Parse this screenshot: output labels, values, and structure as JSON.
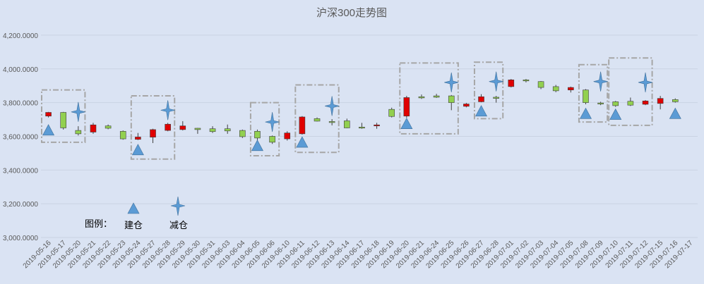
{
  "chart_data": {
    "type": "candlestick",
    "title": "沪深300走势图",
    "ylim": [
      3000,
      4300
    ],
    "yticks": [
      3000,
      3200,
      3400,
      3600,
      3800,
      4000,
      4200
    ],
    "ytick_labels": [
      "3,000.0000",
      "3,200.0000",
      "3,400.0000",
      "3,600.0000",
      "3,800.0000",
      "4,000.0000",
      "4,200.0000"
    ],
    "grid": true,
    "legend": {
      "label": "图例：",
      "buy": "建仓",
      "sell": "减仓",
      "position": "bottom-left"
    },
    "colors": {
      "up": "#e00000",
      "down": "#92d050",
      "marker": "#5b9bd5",
      "box": "#a6a6a6",
      "grid": "#c9d3e3"
    },
    "dates": [
      "2019-05-16",
      "2019-05-17",
      "2019-05-20",
      "2019-05-21",
      "2019-05-22",
      "2019-05-23",
      "2019-05-24",
      "2019-05-27",
      "2019-05-28",
      "2019-05-29",
      "2019-05-30",
      "2019-05-31",
      "2019-06-03",
      "2019-06-04",
      "2019-06-05",
      "2019-06-06",
      "2019-06-10",
      "2019-06-11",
      "2019-06-12",
      "2019-06-13",
      "2019-06-14",
      "2019-06-17",
      "2019-06-18",
      "2019-06-19",
      "2019-06-20",
      "2019-06-21",
      "2019-06-24",
      "2019-06-25",
      "2019-06-26",
      "2019-06-27",
      "2019-06-28",
      "2019-07-01",
      "2019-07-02",
      "2019-07-03",
      "2019-07-04",
      "2019-07-05",
      "2019-07-08",
      "2019-07-09",
      "2019-07-10",
      "2019-07-11",
      "2019-07-12",
      "2019-07-15",
      "2019-07-16",
      "2019-07-17"
    ],
    "candles": [
      {
        "date": "2019-05-16",
        "open": 3720,
        "close": 3742,
        "high": 3745,
        "low": 3712
      },
      {
        "date": "2019-05-17",
        "open": 3742,
        "close": 3650,
        "high": 3745,
        "low": 3640
      },
      {
        "date": "2019-05-20",
        "open": 3635,
        "close": 3615,
        "high": 3660,
        "low": 3605
      },
      {
        "date": "2019-05-21",
        "open": 3625,
        "close": 3668,
        "high": 3680,
        "low": 3615
      },
      {
        "date": "2019-05-22",
        "open": 3662,
        "close": 3648,
        "high": 3670,
        "low": 3642
      },
      {
        "date": "2019-05-23",
        "open": 3630,
        "close": 3585,
        "high": 3635,
        "low": 3580
      },
      {
        "date": "2019-05-24",
        "open": 3582,
        "close": 3596,
        "high": 3620,
        "low": 3578
      },
      {
        "date": "2019-05-27",
        "open": 3595,
        "close": 3640,
        "high": 3645,
        "low": 3560
      },
      {
        "date": "2019-05-28",
        "open": 3635,
        "close": 3672,
        "high": 3680,
        "low": 3630
      },
      {
        "date": "2019-05-29",
        "open": 3640,
        "close": 3662,
        "high": 3690,
        "low": 3635
      },
      {
        "date": "2019-05-30",
        "open": 3648,
        "close": 3640,
        "high": 3650,
        "low": 3615
      },
      {
        "date": "2019-05-31",
        "open": 3645,
        "close": 3628,
        "high": 3660,
        "low": 3620
      },
      {
        "date": "2019-06-03",
        "open": 3645,
        "close": 3632,
        "high": 3670,
        "low": 3615
      },
      {
        "date": "2019-06-04",
        "open": 3635,
        "close": 3598,
        "high": 3640,
        "low": 3590
      },
      {
        "date": "2019-06-05",
        "open": 3630,
        "close": 3590,
        "high": 3640,
        "low": 3575
      },
      {
        "date": "2019-06-06",
        "open": 3600,
        "close": 3565,
        "high": 3605,
        "low": 3555
      },
      {
        "date": "2019-06-10",
        "open": 3585,
        "close": 3620,
        "high": 3630,
        "low": 3575
      },
      {
        "date": "2019-06-11",
        "open": 3615,
        "close": 3715,
        "high": 3720,
        "low": 3610
      },
      {
        "date": "2019-06-12",
        "open": 3705,
        "close": 3690,
        "high": 3712,
        "low": 3688
      },
      {
        "date": "2019-06-13",
        "open": 3688,
        "close": 3682,
        "high": 3702,
        "low": 3665
      },
      {
        "date": "2019-06-14",
        "open": 3692,
        "close": 3650,
        "high": 3705,
        "low": 3648
      },
      {
        "date": "2019-06-17",
        "open": 3655,
        "close": 3650,
        "high": 3680,
        "low": 3645
      },
      {
        "date": "2019-06-18",
        "open": 3662,
        "close": 3668,
        "high": 3680,
        "low": 3645
      },
      {
        "date": "2019-06-19",
        "open": 3760,
        "close": 3718,
        "high": 3770,
        "low": 3712
      },
      {
        "date": "2019-06-20",
        "open": 3720,
        "close": 3830,
        "high": 3840,
        "low": 3710
      },
      {
        "date": "2019-06-21",
        "open": 3835,
        "close": 3828,
        "high": 3848,
        "low": 3822
      },
      {
        "date": "2019-06-24",
        "open": 3840,
        "close": 3832,
        "high": 3852,
        "low": 3828
      },
      {
        "date": "2019-06-25",
        "open": 3840,
        "close": 3800,
        "high": 3845,
        "low": 3755
      },
      {
        "date": "2019-06-26",
        "open": 3778,
        "close": 3792,
        "high": 3798,
        "low": 3772
      },
      {
        "date": "2019-06-27",
        "open": 3805,
        "close": 3835,
        "high": 3850,
        "low": 3802
      },
      {
        "date": "2019-06-28",
        "open": 3832,
        "close": 3825,
        "high": 3840,
        "low": 3800
      },
      {
        "date": "2019-07-01",
        "open": 3895,
        "close": 3935,
        "high": 3940,
        "low": 3890
      },
      {
        "date": "2019-07-02",
        "open": 3935,
        "close": 3930,
        "high": 3940,
        "low": 3920
      },
      {
        "date": "2019-07-03",
        "open": 3925,
        "close": 3890,
        "high": 3928,
        "low": 3880
      },
      {
        "date": "2019-07-04",
        "open": 3895,
        "close": 3870,
        "high": 3905,
        "low": 3862
      },
      {
        "date": "2019-07-05",
        "open": 3875,
        "close": 3890,
        "high": 3895,
        "low": 3860
      },
      {
        "date": "2019-07-08",
        "open": 3875,
        "close": 3800,
        "high": 3880,
        "low": 3790
      },
      {
        "date": "2019-07-09",
        "open": 3798,
        "close": 3795,
        "high": 3805,
        "low": 3785
      },
      {
        "date": "2019-07-10",
        "open": 3805,
        "close": 3782,
        "high": 3810,
        "low": 3775
      },
      {
        "date": "2019-07-11",
        "open": 3808,
        "close": 3785,
        "high": 3830,
        "low": 3780
      },
      {
        "date": "2019-07-12",
        "open": 3790,
        "close": 3810,
        "high": 3815,
        "low": 3785
      },
      {
        "date": "2019-07-15",
        "open": 3795,
        "close": 3825,
        "high": 3840,
        "low": 3760
      },
      {
        "date": "2019-07-16",
        "open": 3818,
        "close": 3805,
        "high": 3825,
        "low": 3800
      }
    ],
    "buy_markers": [
      {
        "date": "2019-05-16",
        "value": 3632
      },
      {
        "date": "2019-05-24",
        "value": 3515
      },
      {
        "date": "2019-06-05",
        "value": 3540
      },
      {
        "date": "2019-06-11",
        "value": 3560
      },
      {
        "date": "2019-06-20",
        "value": 3670
      },
      {
        "date": "2019-06-27",
        "value": 3745
      },
      {
        "date": "2019-07-08",
        "value": 3730
      },
      {
        "date": "2019-07-10",
        "value": 3725
      },
      {
        "date": "2019-07-16",
        "value": 3730
      }
    ],
    "sell_markers": [
      {
        "date": "2019-05-20",
        "value": 3745
      },
      {
        "date": "2019-05-28",
        "value": 3755
      },
      {
        "date": "2019-06-06",
        "value": 3685
      },
      {
        "date": "2019-06-13",
        "value": 3780
      },
      {
        "date": "2019-06-25",
        "value": 3920
      },
      {
        "date": "2019-06-28",
        "value": 3925
      },
      {
        "date": "2019-07-09",
        "value": 3925
      },
      {
        "date": "2019-07-12",
        "value": 3920
      }
    ],
    "boxes": [
      {
        "from": "2019-05-16",
        "to": "2019-05-20",
        "low": 3565,
        "high": 3875
      },
      {
        "from": "2019-05-24",
        "to": "2019-05-28",
        "low": 3465,
        "high": 3840
      },
      {
        "from": "2019-06-05",
        "to": "2019-06-06",
        "low": 3485,
        "high": 3800
      },
      {
        "from": "2019-06-11",
        "to": "2019-06-13",
        "low": 3505,
        "high": 3905
      },
      {
        "from": "2019-06-20",
        "to": "2019-06-25",
        "low": 3615,
        "high": 4035
      },
      {
        "from": "2019-06-27",
        "to": "2019-06-28",
        "low": 3705,
        "high": 4040
      },
      {
        "from": "2019-07-08",
        "to": "2019-07-09",
        "low": 3685,
        "high": 4025
      },
      {
        "from": "2019-07-10",
        "to": "2019-07-12",
        "low": 3665,
        "high": 4065
      }
    ]
  }
}
